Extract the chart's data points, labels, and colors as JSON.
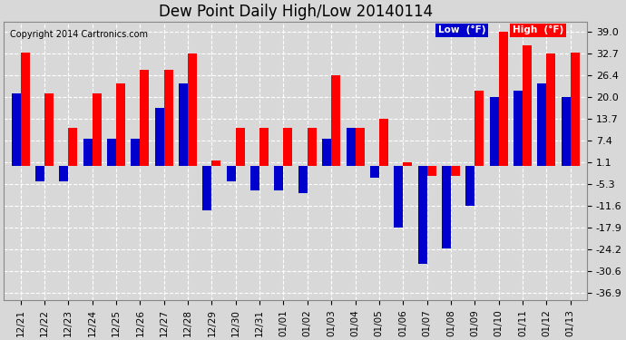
{
  "title": "Dew Point Daily High/Low 20140114",
  "copyright": "Copyright 2014 Cartronics.com",
  "dates": [
    "12/21",
    "12/22",
    "12/23",
    "12/24",
    "12/25",
    "12/26",
    "12/27",
    "12/28",
    "12/29",
    "12/30",
    "12/31",
    "01/01",
    "01/02",
    "01/03",
    "01/04",
    "01/05",
    "01/06",
    "01/07",
    "01/08",
    "01/09",
    "01/10",
    "01/11",
    "01/12",
    "01/13"
  ],
  "high": [
    33.0,
    21.0,
    11.0,
    21.0,
    24.0,
    28.0,
    28.0,
    32.7,
    1.5,
    11.0,
    11.0,
    11.0,
    11.0,
    26.4,
    11.0,
    13.7,
    1.1,
    -3.0,
    -3.0,
    22.0,
    39.0,
    35.0,
    32.7,
    33.0
  ],
  "low": [
    21.0,
    -4.5,
    -4.5,
    8.0,
    8.0,
    8.0,
    17.0,
    24.0,
    -13.0,
    -4.5,
    -7.0,
    -7.0,
    -8.0,
    8.0,
    11.0,
    -3.5,
    -18.0,
    -28.5,
    -24.0,
    -11.6,
    20.0,
    22.0,
    24.0,
    20.0
  ],
  "yticks": [
    39.0,
    32.7,
    26.4,
    20.0,
    13.7,
    7.4,
    1.1,
    -5.3,
    -11.6,
    -17.9,
    -24.2,
    -30.6,
    -36.9
  ],
  "ylim": [
    -39.0,
    42.0
  ],
  "bar_color_high": "#ff0000",
  "bar_color_low": "#0000cc",
  "bg_color": "#d8d8d8",
  "plot_bg_color": "#d8d8d8",
  "grid_color": "#ffffff",
  "title_fontsize": 12,
  "legend_low_bg": "#0000cc",
  "legend_high_bg": "#ff0000"
}
